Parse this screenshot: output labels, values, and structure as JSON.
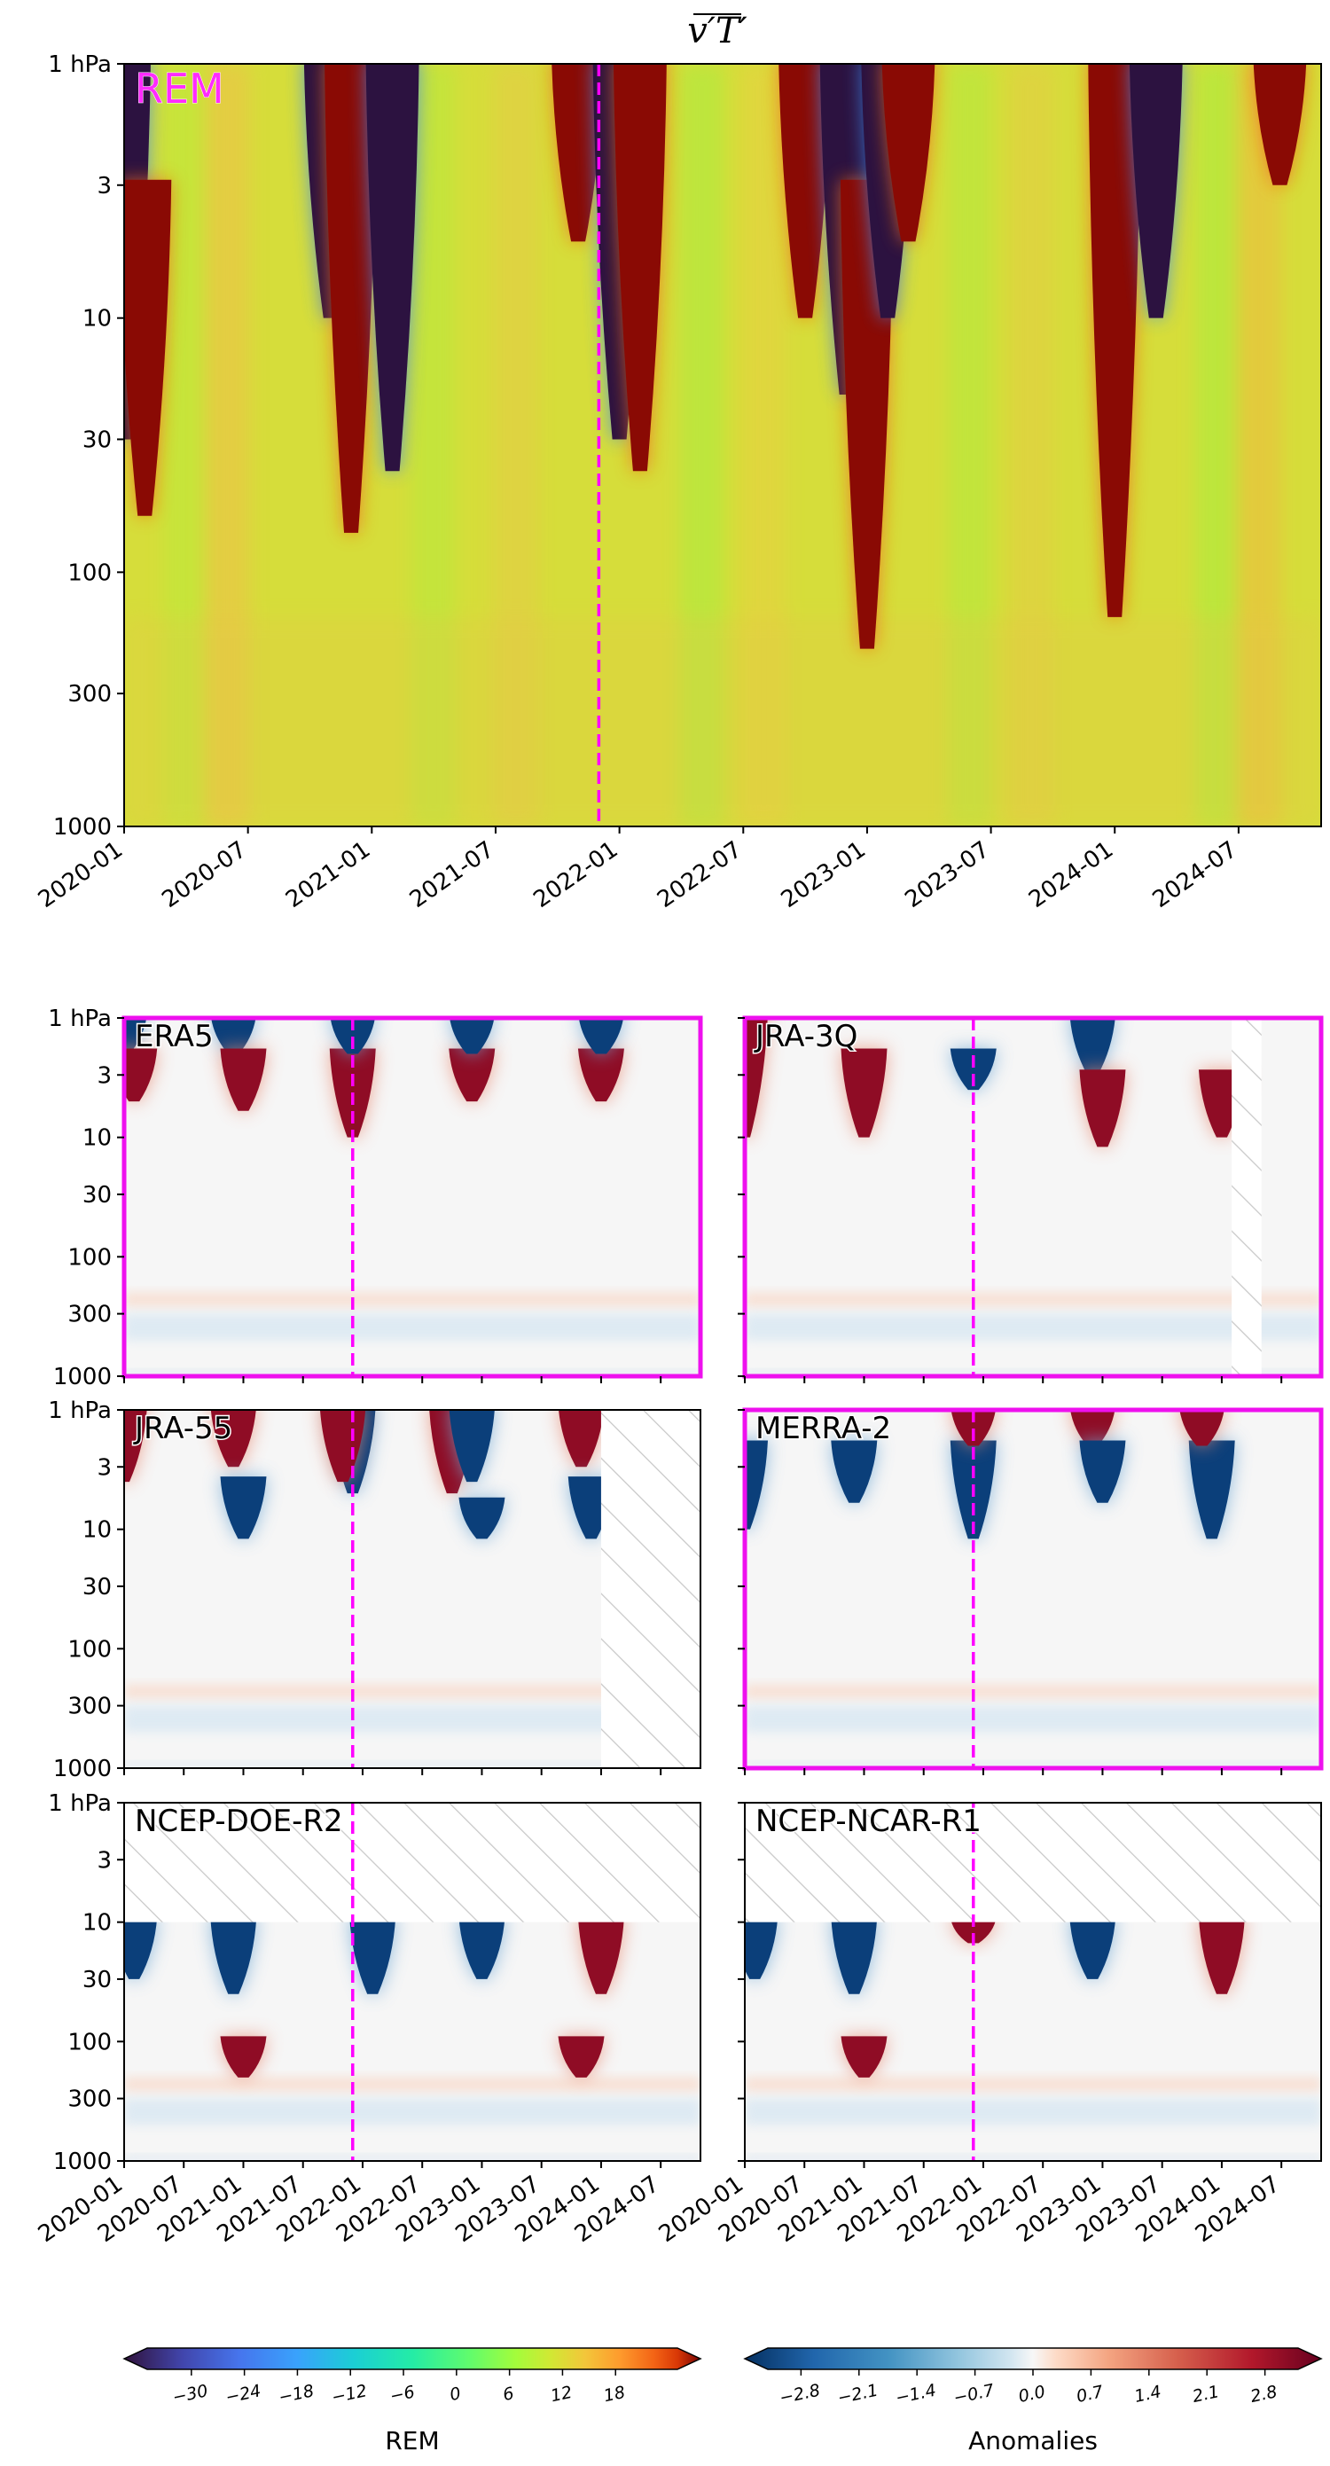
{
  "figure": {
    "title": "v′T′",
    "title_overline": true
  },
  "chart_data": [
    {
      "id": "rem",
      "type": "heatmap",
      "label": "REM",
      "label_color": "#ff2bff",
      "x_ticks": [
        "2020-01",
        "2020-07",
        "2021-01",
        "2021-07",
        "2022-01",
        "2022-07",
        "2023-01",
        "2023-07",
        "2024-01",
        "2024-07"
      ],
      "y_ticks": [
        "1 hPa",
        "3",
        "10",
        "30",
        "100",
        "300",
        "1000"
      ],
      "y_scale": "log-pressure",
      "vline_date": "2021-12",
      "vline_color": "#ff00ff",
      "highlight_frame": false,
      "colormap": "turbo",
      "events": [
        {
          "date": "2020-01",
          "sign": "neg",
          "top": 1,
          "bottom": 30
        },
        {
          "date": "2020-02",
          "sign": "pos",
          "top": 3,
          "bottom": 60
        },
        {
          "date": "2020-11",
          "sign": "neg",
          "top": 1,
          "bottom": 10
        },
        {
          "date": "2020-12",
          "sign": "pos",
          "top": 1,
          "bottom": 70
        },
        {
          "date": "2021-02",
          "sign": "neg",
          "top": 1,
          "bottom": 40
        },
        {
          "date": "2021-11",
          "sign": "pos",
          "top": 1,
          "bottom": 5
        },
        {
          "date": "2022-01",
          "sign": "neg",
          "top": 1,
          "bottom": 30
        },
        {
          "date": "2022-02",
          "sign": "pos",
          "top": 1,
          "bottom": 40
        },
        {
          "date": "2022-10",
          "sign": "pos",
          "top": 1,
          "bottom": 10
        },
        {
          "date": "2022-12",
          "sign": "neg",
          "top": 1,
          "bottom": 20
        },
        {
          "date": "2023-01",
          "sign": "pos",
          "top": 3,
          "bottom": 200
        },
        {
          "date": "2023-02",
          "sign": "neg",
          "top": 1,
          "bottom": 10
        },
        {
          "date": "2023-03",
          "sign": "pos",
          "top": 1,
          "bottom": 5
        },
        {
          "date": "2024-01",
          "sign": "pos",
          "top": 1,
          "bottom": 150
        },
        {
          "date": "2024-03",
          "sign": "neg",
          "top": 1,
          "bottom": 10
        },
        {
          "date": "2024-09",
          "sign": "pos",
          "top": 1,
          "bottom": 3
        }
      ]
    },
    {
      "id": "era5",
      "type": "heatmap",
      "label": "ERA5",
      "x_ticks": [
        "2020-01",
        "2020-07",
        "2021-01",
        "2021-07",
        "2022-01",
        "2022-07",
        "2023-01",
        "2023-07",
        "2024-01",
        "2024-07"
      ],
      "y_ticks": [
        "1 hPa",
        "3",
        "10",
        "30",
        "100",
        "300",
        "1000"
      ],
      "vline_date": "2021-12",
      "highlight_frame": true,
      "colormap": "RdBu_r",
      "hatch": [],
      "events": [
        {
          "date": "2020-01",
          "sign": "neg",
          "top": 1,
          "bottom": 2
        },
        {
          "date": "2020-02",
          "sign": "pos",
          "top": 2,
          "bottom": 5
        },
        {
          "date": "2020-12",
          "sign": "neg",
          "top": 1,
          "bottom": 2
        },
        {
          "date": "2021-01",
          "sign": "pos",
          "top": 2,
          "bottom": 6
        },
        {
          "date": "2021-12",
          "sign": "pos",
          "top": 2,
          "bottom": 10
        },
        {
          "date": "2021-12",
          "sign": "neg",
          "top": 1,
          "bottom": 2
        },
        {
          "date": "2022-12",
          "sign": "pos",
          "top": 2,
          "bottom": 5
        },
        {
          "date": "2022-12",
          "sign": "neg",
          "top": 1,
          "bottom": 2
        },
        {
          "date": "2024-01",
          "sign": "pos",
          "top": 2,
          "bottom": 5
        },
        {
          "date": "2024-01",
          "sign": "neg",
          "top": 1,
          "bottom": 2
        }
      ]
    },
    {
      "id": "jra3q",
      "type": "heatmap",
      "label": "JRA-3Q",
      "x_ticks": [
        "2020-01",
        "2020-07",
        "2021-01",
        "2021-07",
        "2022-01",
        "2022-07",
        "2023-01",
        "2023-07",
        "2024-01",
        "2024-07"
      ],
      "y_ticks": [
        "1 hPa",
        "3",
        "10",
        "30",
        "100",
        "300",
        "1000"
      ],
      "vline_date": "2021-12",
      "highlight_frame": true,
      "colormap": "RdBu_r",
      "hatch": [
        {
          "from": "2024-02",
          "to": "2024-05",
          "top": 1,
          "bottom": 1000
        }
      ],
      "events": [
        {
          "date": "2020-01",
          "sign": "pos",
          "top": 1,
          "bottom": 10
        },
        {
          "date": "2021-01",
          "sign": "pos",
          "top": 2,
          "bottom": 10
        },
        {
          "date": "2021-12",
          "sign": "neg",
          "top": 2,
          "bottom": 4
        },
        {
          "date": "2022-12",
          "sign": "neg",
          "top": 1,
          "bottom": 3
        },
        {
          "date": "2023-01",
          "sign": "pos",
          "top": 3,
          "bottom": 12
        },
        {
          "date": "2024-01",
          "sign": "pos",
          "top": 3,
          "bottom": 10
        }
      ]
    },
    {
      "id": "jra55",
      "type": "heatmap",
      "label": "JRA-55",
      "x_ticks": [
        "2020-01",
        "2020-07",
        "2021-01",
        "2021-07",
        "2022-01",
        "2022-07",
        "2023-01",
        "2023-07",
        "2024-01",
        "2024-07"
      ],
      "y_ticks": [
        "1 hPa",
        "3",
        "10",
        "30",
        "100",
        "300",
        "1000"
      ],
      "vline_date": "2021-12",
      "highlight_frame": false,
      "colormap": "RdBu_r",
      "hatch": [
        {
          "from": "2024-01",
          "to": "2024-11",
          "top": 1,
          "bottom": 1000
        }
      ],
      "events": [
        {
          "date": "2020-01",
          "sign": "pos",
          "top": 1,
          "bottom": 4
        },
        {
          "date": "2020-12",
          "sign": "pos",
          "top": 1,
          "bottom": 3
        },
        {
          "date": "2021-01",
          "sign": "neg",
          "top": 4,
          "bottom": 12
        },
        {
          "date": "2021-12",
          "sign": "neg",
          "top": 1,
          "bottom": 5
        },
        {
          "date": "2021-11",
          "sign": "pos",
          "top": 1,
          "bottom": 4
        },
        {
          "date": "2022-10",
          "sign": "pos",
          "top": 1,
          "bottom": 5
        },
        {
          "date": "2022-12",
          "sign": "neg",
          "top": 1,
          "bottom": 4
        },
        {
          "date": "2023-01",
          "sign": "neg",
          "top": 6,
          "bottom": 12
        },
        {
          "date": "2023-11",
          "sign": "pos",
          "top": 1,
          "bottom": 3
        },
        {
          "date": "2023-12",
          "sign": "neg",
          "top": 4,
          "bottom": 12
        }
      ]
    },
    {
      "id": "merra2",
      "type": "heatmap",
      "label": "MERRA-2",
      "x_ticks": [
        "2020-01",
        "2020-07",
        "2021-01",
        "2021-07",
        "2022-01",
        "2022-07",
        "2023-01",
        "2023-07",
        "2024-01",
        "2024-07"
      ],
      "y_ticks": [
        "1 hPa",
        "3",
        "10",
        "30",
        "100",
        "300",
        "1000"
      ],
      "vline_date": "2021-12",
      "highlight_frame": true,
      "colormap": "RdBu_r",
      "hatch": [],
      "events": [
        {
          "date": "2020-01",
          "sign": "neg",
          "top": 2,
          "bottom": 10
        },
        {
          "date": "2020-12",
          "sign": "neg",
          "top": 2,
          "bottom": 6
        },
        {
          "date": "2021-12",
          "sign": "neg",
          "top": 2,
          "bottom": 12
        },
        {
          "date": "2021-12",
          "sign": "pos",
          "top": 1,
          "bottom": 2
        },
        {
          "date": "2022-12",
          "sign": "pos",
          "top": 1,
          "bottom": 2
        },
        {
          "date": "2023-01",
          "sign": "neg",
          "top": 2,
          "bottom": 6
        },
        {
          "date": "2023-12",
          "sign": "neg",
          "top": 2,
          "bottom": 12
        },
        {
          "date": "2023-11",
          "sign": "pos",
          "top": 1,
          "bottom": 2
        }
      ]
    },
    {
      "id": "ncep-doe-r2",
      "type": "heatmap",
      "label": "NCEP-DOE-R2",
      "x_ticks": [
        "2020-01",
        "2020-07",
        "2021-01",
        "2021-07",
        "2022-01",
        "2022-07",
        "2023-01",
        "2023-07",
        "2024-01",
        "2024-07"
      ],
      "y_ticks": [
        "1 hPa",
        "3",
        "10",
        "30",
        "100",
        "300",
        "1000"
      ],
      "vline_date": "2021-12",
      "highlight_frame": false,
      "colormap": "RdBu_r",
      "hatch": [
        {
          "from": "2020-01",
          "to": "2024-11",
          "top": 1,
          "bottom": 10
        }
      ],
      "events": [
        {
          "date": "2020-02",
          "sign": "neg",
          "top": 10,
          "bottom": 30
        },
        {
          "date": "2020-12",
          "sign": "neg",
          "top": 10,
          "bottom": 40
        },
        {
          "date": "2022-02",
          "sign": "neg",
          "top": 10,
          "bottom": 40
        },
        {
          "date": "2023-01",
          "sign": "neg",
          "top": 10,
          "bottom": 30
        },
        {
          "date": "2024-01",
          "sign": "pos",
          "top": 10,
          "bottom": 40
        },
        {
          "date": "2021-01",
          "sign": "pos",
          "top": 100,
          "bottom": 200
        },
        {
          "date": "2023-11",
          "sign": "pos",
          "top": 100,
          "bottom": 200
        }
      ]
    },
    {
      "id": "ncep-ncar-r1",
      "type": "heatmap",
      "label": "NCEP-NCAR-R1",
      "x_ticks": [
        "2020-01",
        "2020-07",
        "2021-01",
        "2021-07",
        "2022-01",
        "2022-07",
        "2023-01",
        "2023-07",
        "2024-01",
        "2024-07"
      ],
      "y_ticks": [
        "1 hPa",
        "3",
        "10",
        "30",
        "100",
        "300",
        "1000"
      ],
      "vline_date": "2021-12",
      "highlight_frame": false,
      "colormap": "RdBu_r",
      "hatch": [
        {
          "from": "2020-01",
          "to": "2024-11",
          "top": 1,
          "bottom": 10
        }
      ],
      "events": [
        {
          "date": "2020-02",
          "sign": "neg",
          "top": 10,
          "bottom": 30
        },
        {
          "date": "2020-12",
          "sign": "neg",
          "top": 10,
          "bottom": 40
        },
        {
          "date": "2021-12",
          "sign": "pos",
          "top": 10,
          "bottom": 15
        },
        {
          "date": "2022-12",
          "sign": "neg",
          "top": 10,
          "bottom": 30
        },
        {
          "date": "2024-01",
          "sign": "pos",
          "top": 10,
          "bottom": 40
        },
        {
          "date": "2021-01",
          "sign": "pos",
          "top": 100,
          "bottom": 200
        }
      ]
    }
  ],
  "colorbars": [
    {
      "id": "rem-colorbar",
      "label": "REM",
      "colormap": "turbo",
      "range": [
        -35,
        25
      ],
      "ticks": [
        "−30",
        "−24",
        "−18",
        "−12",
        "−6",
        "0",
        "6",
        "12",
        "18"
      ],
      "tick_values": [
        -30,
        -24,
        -18,
        -12,
        -6,
        0,
        6,
        12,
        18
      ]
    },
    {
      "id": "anomaly-colorbar",
      "label": "Anomalies",
      "colormap": "RdBu_r",
      "range": [
        -3.2,
        3.2
      ],
      "ticks": [
        "−2.8",
        "−2.1",
        "−1.4",
        "−0.7",
        "0.0",
        "0.7",
        "1.4",
        "2.1",
        "2.8"
      ],
      "tick_values": [
        -2.8,
        -2.1,
        -1.4,
        -0.7,
        0.0,
        0.7,
        1.4,
        2.1,
        2.8
      ]
    }
  ]
}
